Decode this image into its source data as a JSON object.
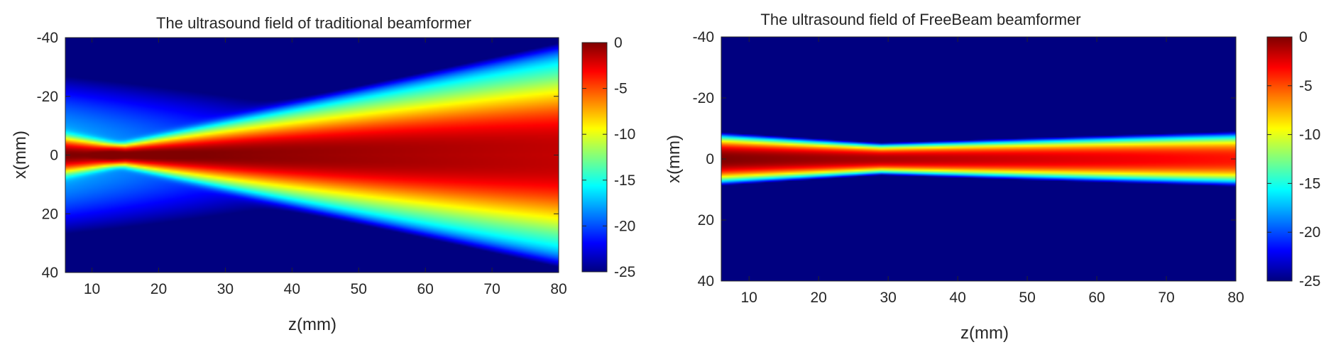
{
  "chart_data": [
    {
      "type": "heatmap",
      "title": "The ultrasound field of traditional beamformer",
      "xlabel": "z(mm)",
      "ylabel": "x(mm)",
      "xlim": [
        6,
        80
      ],
      "ylim": [
        -40,
        40
      ],
      "y_reversed": true,
      "x_ticks": [
        10,
        20,
        30,
        40,
        50,
        60,
        70,
        80
      ],
      "y_ticks": [
        -40,
        -20,
        0,
        20,
        40
      ],
      "colorbar": {
        "colormap": "jet",
        "range": [
          -25,
          0
        ],
        "ticks": [
          0,
          -5,
          -10,
          -15,
          -20,
          -25
        ]
      },
      "field": {
        "focus_depth": 15,
        "peak_db": 0,
        "background_db": -25,
        "beam_axis_x": 0,
        "sidelobes": true
      }
    },
    {
      "type": "heatmap",
      "title": "The ultrasound field of FreeBeam beamformer",
      "xlabel": "z(mm)",
      "ylabel": "x(mm)",
      "xlim": [
        6,
        80
      ],
      "ylim": [
        -40,
        40
      ],
      "y_reversed": true,
      "x_ticks": [
        10,
        20,
        30,
        40,
        50,
        60,
        70,
        80
      ],
      "y_ticks": [
        -40,
        -20,
        0,
        20,
        40
      ],
      "colorbar": {
        "colormap": "jet",
        "range": [
          -25,
          0
        ],
        "ticks": [
          0,
          -5,
          -10,
          -15,
          -20,
          -25
        ]
      },
      "field": {
        "focus_depth": 29,
        "peak_db": 0,
        "background_db": -25,
        "beam_axis_x": 0,
        "sidelobes": false
      }
    }
  ]
}
